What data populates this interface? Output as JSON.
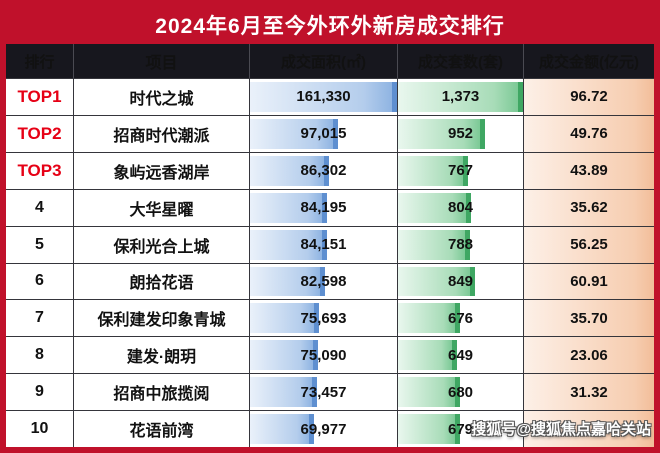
{
  "title": "2024年6月至今外环外新房成交排行",
  "colors": {
    "frame_red": "#c0112b",
    "header_bg": "#17171e",
    "rank_top_red": "#e60015",
    "bar_blue": "#8fb4e2",
    "bar_green": "#7cc996",
    "bar_peach": "#f6cdb0"
  },
  "table": {
    "headers": [
      "排行",
      "项目",
      "成交面积(㎡)",
      "成交套数(套)",
      "成交金额(亿元)"
    ],
    "rows": [
      {
        "rank": "TOP1",
        "project": "时代之城",
        "area": "161,330",
        "area_pct": 100,
        "units": "1,373",
        "units_pct": 100,
        "amount": "96.72"
      },
      {
        "rank": "TOP2",
        "project": "招商时代潮派",
        "area": "97,015",
        "area_pct": 60.1,
        "units": "952",
        "units_pct": 69.3,
        "amount": "49.76"
      },
      {
        "rank": "TOP3",
        "project": "象屿远香湖岸",
        "area": "86,302",
        "area_pct": 53.5,
        "units": "767",
        "units_pct": 55.9,
        "amount": "43.89"
      },
      {
        "rank": "4",
        "project": "大华星曜",
        "area": "84,195",
        "area_pct": 52.2,
        "units": "804",
        "units_pct": 58.6,
        "amount": "35.62"
      },
      {
        "rank": "5",
        "project": "保利光合上城",
        "area": "84,151",
        "area_pct": 52.2,
        "units": "788",
        "units_pct": 57.4,
        "amount": "56.25"
      },
      {
        "rank": "6",
        "project": "朗拾花语",
        "area": "82,598",
        "area_pct": 51.2,
        "units": "849",
        "units_pct": 61.8,
        "amount": "60.91"
      },
      {
        "rank": "7",
        "project": "保利建发印象青城",
        "area": "75,693",
        "area_pct": 46.9,
        "units": "676",
        "units_pct": 49.2,
        "amount": "35.70"
      },
      {
        "rank": "8",
        "project": "建发·朗玥",
        "area": "75,090",
        "area_pct": 46.5,
        "units": "649",
        "units_pct": 47.3,
        "amount": "23.06"
      },
      {
        "rank": "9",
        "project": "招商中旅揽阅",
        "area": "73,457",
        "area_pct": 45.5,
        "units": "680",
        "units_pct": 49.5,
        "amount": "31.32"
      },
      {
        "rank": "10",
        "project": "花语前湾",
        "area": "69,977",
        "area_pct": 43.4,
        "units": "679",
        "units_pct": 49.5,
        "amount": ""
      }
    ]
  },
  "watermark": "搜狐号@搜狐焦点嘉哈关站",
  "chart_data": {
    "type": "table",
    "title": "2024年6月至今外环外新房成交排行",
    "columns": [
      "排行",
      "项目",
      "成交面积(㎡)",
      "成交套数(套)",
      "成交金额(亿元)"
    ],
    "projects": [
      "时代之城",
      "招商时代潮派",
      "象屿远香湖岸",
      "大华星曜",
      "保利光合上城",
      "朗拾花语",
      "保利建发印象青城",
      "建发·朗玥",
      "招商中旅揽阅",
      "花语前湾"
    ],
    "area_sqm": [
      161330,
      97015,
      86302,
      84195,
      84151,
      82598,
      75693,
      75090,
      73457,
      69977
    ],
    "units_sold": [
      1373,
      952,
      767,
      804,
      788,
      849,
      676,
      649,
      680,
      679
    ],
    "amount_100m_yuan": [
      96.72,
      49.76,
      43.89,
      35.62,
      56.25,
      60.91,
      35.7,
      23.06,
      31.32,
      null
    ],
    "notes": "blue data bars = area, green data bars = units, peach fill = amount; row 10 amount obscured by watermark"
  }
}
